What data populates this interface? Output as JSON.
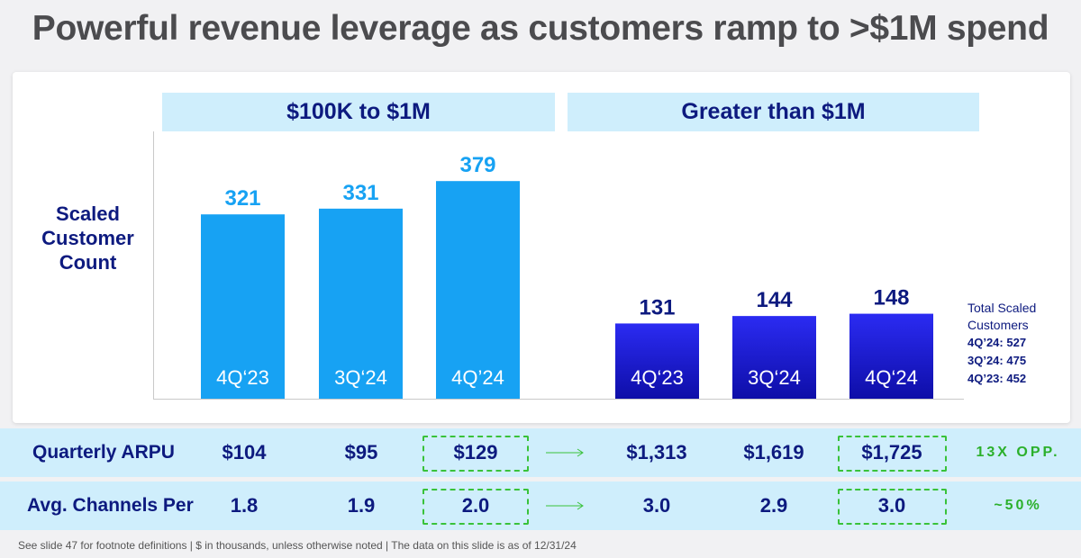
{
  "title": "Powerful revenue leverage as customers ramp to >$1M spend",
  "chart_data": {
    "type": "bar",
    "ylabel": "Scaled Customer Count",
    "groups": [
      {
        "name": "$100K to $1M",
        "color": "#17a2f3",
        "categories": [
          "4Q‘23",
          "3Q‘24",
          "4Q’24"
        ],
        "values": [
          321,
          331,
          379
        ]
      },
      {
        "name": "Greater than $1M",
        "color": "#1a1adf",
        "categories": [
          "4Q‘23",
          "3Q‘24",
          "4Q‘24"
        ],
        "values": [
          131,
          144,
          148
        ]
      }
    ]
  },
  "totals": {
    "title": "Total Scaled Customers",
    "lines": [
      "4Q’24: 527",
      "3Q’24: 475",
      "4Q’23: 452"
    ]
  },
  "metrics": [
    {
      "label": "Quarterly ARPU",
      "values": [
        "$104",
        "$95",
        "$129",
        "$1,313",
        "$1,619",
        "$1,725"
      ],
      "note": "13X OPP."
    },
    {
      "label": "Avg. Channels Per",
      "values": [
        "1.8",
        "1.9",
        "2.0",
        "3.0",
        "2.9",
        "3.0"
      ],
      "note": "~50%"
    }
  ],
  "colors": {
    "small_bar": "#17a2f3",
    "large_bar": "#1a1adf",
    "navy": "#0d1a7f",
    "highlight": "#39c23a"
  },
  "footer": "See slide 47 for footnote definitions  |  $ in thousands, unless otherwise noted  |  The data on this slide is as of 12/31/24"
}
